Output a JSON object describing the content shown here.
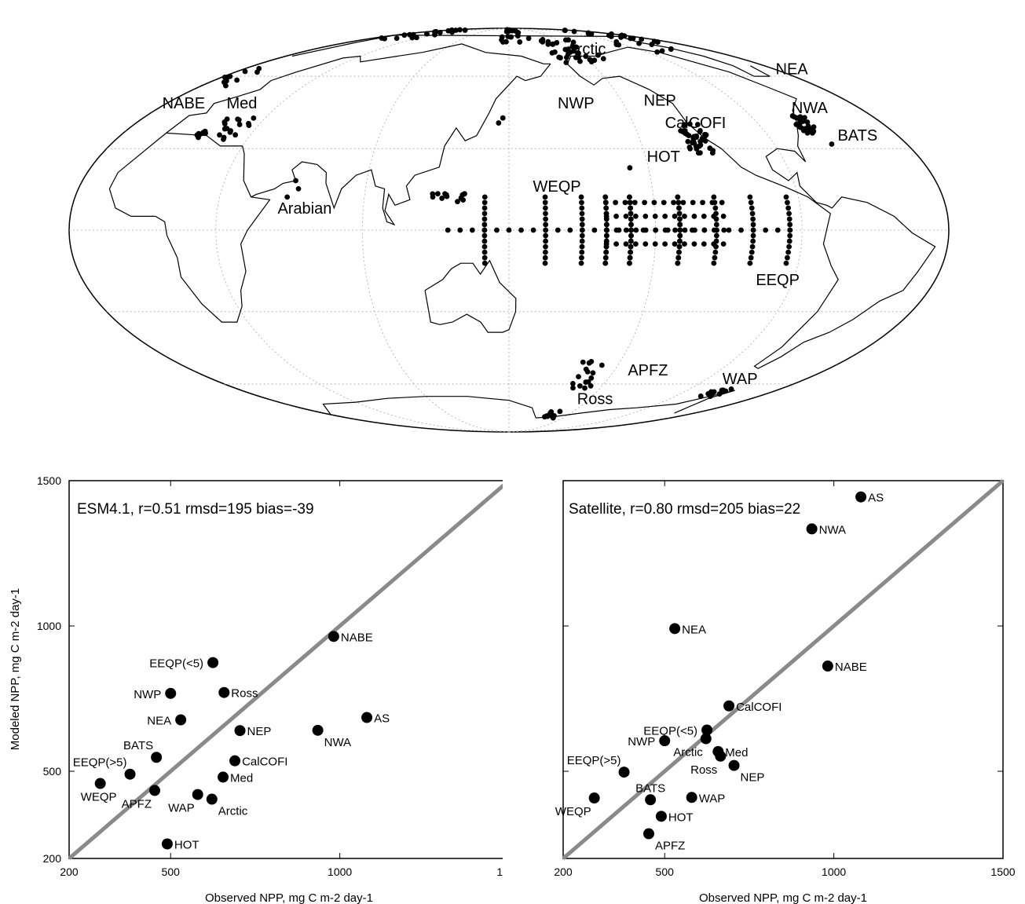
{
  "map": {
    "labels": [
      {
        "text": "Arctic",
        "lon": -162,
        "lat": 71
      },
      {
        "text": "NWP",
        "lon": 175,
        "lat": 46
      },
      {
        "text": "NEP",
        "lon": -140,
        "lat": 47
      },
      {
        "text": "CalCOFI",
        "lon": -136,
        "lat": 38
      },
      {
        "text": "HOT",
        "lon": -150,
        "lat": 25
      },
      {
        "text": "WEQP",
        "lon": 160,
        "lat": 14
      },
      {
        "text": "Arabian",
        "lon": 55,
        "lat": 6
      },
      {
        "text": "EEQP",
        "lon": -105,
        "lat": -20
      },
      {
        "text": "APFZ",
        "lon": -140,
        "lat": -56
      },
      {
        "text": "WAP",
        "lon": -75,
        "lat": -60
      },
      {
        "text": "Ross",
        "lon": -155,
        "lat": -70
      },
      {
        "text": "NEA",
        "lon": -38,
        "lat": 61
      },
      {
        "text": "NWA",
        "lon": -68,
        "lat": 44
      },
      {
        "text": "NABE",
        "lon": -28,
        "lat": 46
      },
      {
        "text": "BATS",
        "lon": -60,
        "lat": 33
      },
      {
        "text": "Med",
        "lon": 5,
        "lat": 46
      }
    ],
    "clusters": [
      {
        "lon0": -175,
        "lon1": -135,
        "lat0": 66,
        "lat1": 80,
        "n": 40
      },
      {
        "lon0": 140,
        "lon1": 180,
        "lat0": 78,
        "lat1": 88,
        "n": 18
      },
      {
        "lon0": -60,
        "lon1": 40,
        "lat0": 80,
        "lat1": 88,
        "n": 30
      },
      {
        "lon0": -100,
        "lon1": -40,
        "lat0": 72,
        "lat1": 84,
        "n": 16
      },
      {
        "lon0": -130,
        "lon1": -118,
        "lat0": 28,
        "lat1": 40,
        "n": 40
      },
      {
        "lon0": -72,
        "lon1": -64,
        "lat0": 36,
        "lat1": 43,
        "n": 25
      },
      {
        "lon0": 5,
        "lon1": 28,
        "lat0": 33,
        "lat1": 42,
        "n": 26
      },
      {
        "lon0": -28,
        "lon1": -12,
        "lat0": 55,
        "lat1": 65,
        "n": 10
      },
      {
        "lon0": 118,
        "lon1": 132,
        "lat0": 10,
        "lat1": 14,
        "n": 12
      },
      {
        "lon0": -170,
        "lon1": -155,
        "lat0": -62,
        "lat1": -50,
        "n": 16
      },
      {
        "lon0": -72,
        "lon1": -62,
        "lat0": -66,
        "lat1": -62,
        "n": 14
      },
      {
        "lon0": -175,
        "lon1": -160,
        "lat0": -78,
        "lat1": -74,
        "n": 10
      }
    ],
    "meridians": [
      -160,
      -160,
      -140,
      -140,
      -125,
      -110,
      -95,
      -170,
      -170,
      180,
      165,
      140
    ],
    "parallels": [
      0,
      5,
      10,
      -5
    ],
    "points": [
      [
        -158,
        22.75
      ],
      [
        -64,
        31.7
      ],
      [
        60,
        18
      ],
      [
        62,
        15
      ],
      [
        58,
        12
      ],
      [
        147,
        42
      ],
      [
        145,
        40
      ]
    ]
  },
  "charts": [
    {
      "stat_text": "ESM4.1, r=0.51 rmsd=195 bias=-39",
      "ylabel": "Modeled NPP, mg C m-2 day-1",
      "xlabel": "Observed NPP, mg C m-2 day-1",
      "xlim": [
        200,
        1500
      ],
      "ylim": [
        200,
        1500
      ],
      "ticks": [
        200,
        500,
        1000,
        1500
      ],
      "points": [
        {
          "label": "NABE",
          "x": 982,
          "y": 964,
          "pos": "right"
        },
        {
          "label": "EEQP(<5)",
          "x": 625,
          "y": 874,
          "pos": "left"
        },
        {
          "label": "NWP",
          "x": 500,
          "y": 768,
          "pos": "left"
        },
        {
          "label": "Ross",
          "x": 658,
          "y": 771,
          "pos": "right"
        },
        {
          "label": "AS",
          "x": 1080,
          "y": 685,
          "pos": "right"
        },
        {
          "label": "NEA",
          "x": 530,
          "y": 677,
          "pos": "left"
        },
        {
          "label": "NEP",
          "x": 705,
          "y": 640,
          "pos": "right"
        },
        {
          "label": "NWA",
          "x": 935,
          "y": 641,
          "pos": "below-right"
        },
        {
          "label": "BATS",
          "x": 458,
          "y": 548,
          "pos": "above-left"
        },
        {
          "label": "CalCOFI",
          "x": 690,
          "y": 536,
          "pos": "right"
        },
        {
          "label": "EEQP(>5)",
          "x": 380,
          "y": 490,
          "pos": "above-left"
        },
        {
          "label": "Med",
          "x": 655,
          "y": 480,
          "pos": "right"
        },
        {
          "label": "WEQP",
          "x": 292,
          "y": 458,
          "pos": "below"
        },
        {
          "label": "APFZ",
          "x": 453,
          "y": 434,
          "pos": "below-left"
        },
        {
          "label": "WAP",
          "x": 580,
          "y": 420,
          "pos": "below-left"
        },
        {
          "label": "Arctic",
          "x": 622,
          "y": 404,
          "pos": "below-right"
        },
        {
          "label": "HOT",
          "x": 490,
          "y": 250,
          "pos": "right"
        }
      ]
    },
    {
      "stat_text": "Satellite, r=0.80 rmsd=205 bias=22",
      "ylabel": "",
      "xlabel": "Observed NPP, mg C m-2 day-1",
      "xlim": [
        200,
        1500
      ],
      "ylim": [
        200,
        1500
      ],
      "ticks": [
        200,
        500,
        1000,
        1500
      ],
      "points": [
        {
          "label": "AS",
          "x": 1080,
          "y": 1444,
          "pos": "right"
        },
        {
          "label": "NWA",
          "x": 935,
          "y": 1334,
          "pos": "right"
        },
        {
          "label": "NEA",
          "x": 530,
          "y": 991,
          "pos": "right"
        },
        {
          "label": "NABE",
          "x": 982,
          "y": 862,
          "pos": "right"
        },
        {
          "label": "CalCOFI",
          "x": 690,
          "y": 725,
          "pos": "right"
        },
        {
          "label": "EEQP(<5)",
          "x": 625,
          "y": 642,
          "pos": "left"
        },
        {
          "label": "NWP",
          "x": 500,
          "y": 605,
          "pos": "left"
        },
        {
          "label": "Arctic",
          "x": 622,
          "y": 612,
          "pos": "below-left"
        },
        {
          "label": "Med",
          "x": 658,
          "y": 568,
          "pos": "right"
        },
        {
          "label": "Ross",
          "x": 665,
          "y": 552,
          "pos": "below-left"
        },
        {
          "label": "NEP",
          "x": 705,
          "y": 520,
          "pos": "below-right"
        },
        {
          "label": "EEQP(>5)",
          "x": 380,
          "y": 497,
          "pos": "above-left"
        },
        {
          "label": "WEQP",
          "x": 292,
          "y": 408,
          "pos": "below-left"
        },
        {
          "label": "BATS",
          "x": 458,
          "y": 402,
          "pos": "above"
        },
        {
          "label": "WAP",
          "x": 580,
          "y": 410,
          "pos": "right"
        },
        {
          "label": "HOT",
          "x": 490,
          "y": 345,
          "pos": "right"
        },
        {
          "label": "APFZ",
          "x": 453,
          "y": 285,
          "pos": "below-right"
        }
      ]
    }
  ]
}
